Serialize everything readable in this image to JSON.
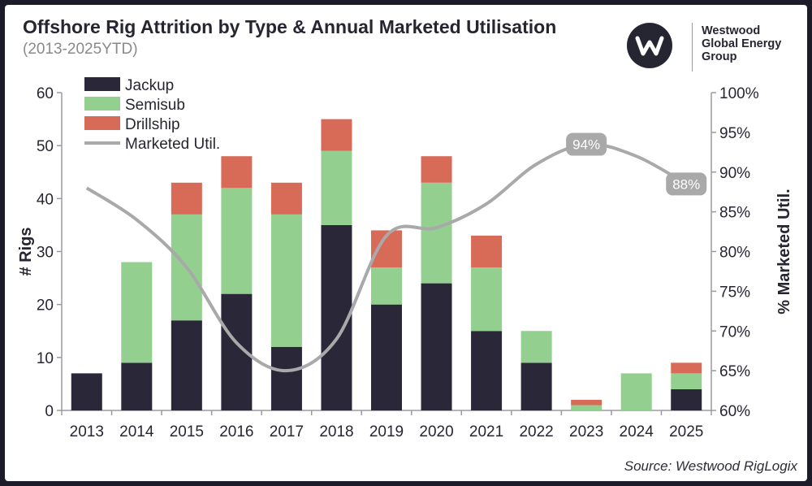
{
  "header": {
    "title": "Offshore Rig Attrition by Type & Annual Marketed Utilisation",
    "subtitle": "(2013-2025YTD)"
  },
  "logo": {
    "icon": "westwood-w-logo",
    "name_lines": [
      "Westwood",
      "Global Energy",
      "Group"
    ]
  },
  "source": "Source: Westwood RigLogix",
  "colors": {
    "jackup": "#2a2838",
    "semisub": "#93cf8f",
    "drillship": "#d86a58",
    "util_line": "#a9a9a9",
    "text": "#262633"
  },
  "chart_data": {
    "type": "bar",
    "stacked": true,
    "categories": [
      "2013",
      "2014",
      "2015",
      "2016",
      "2017",
      "2018",
      "2019",
      "2020",
      "2021",
      "2022",
      "2023",
      "2024",
      "2025"
    ],
    "series": [
      {
        "name": "Jackup",
        "type": "bar",
        "values": [
          7,
          9,
          17,
          22,
          12,
          35,
          20,
          24,
          15,
          9,
          0,
          0,
          4
        ]
      },
      {
        "name": "Semisub",
        "type": "bar",
        "values": [
          0,
          19,
          20,
          20,
          25,
          14,
          7,
          19,
          12,
          6,
          1,
          7,
          3
        ]
      },
      {
        "name": "Drillship",
        "type": "bar",
        "values": [
          0,
          0,
          6,
          6,
          6,
          6,
          7,
          5,
          6,
          0,
          1,
          0,
          2
        ]
      },
      {
        "name": "Marketed Util.",
        "type": "line",
        "axis": "right",
        "values": [
          88,
          84,
          78,
          68.5,
          65,
          69,
          82,
          83,
          86,
          91,
          93.5,
          92,
          88.5
        ]
      }
    ],
    "ylabel": "# Rigs",
    "ylim": [
      0,
      60
    ],
    "yticks": [
      "0",
      "10",
      "20",
      "30",
      "40",
      "50",
      "60"
    ],
    "y2label": "% Marketed Util.",
    "y2lim": [
      60,
      100
    ],
    "y2ticks": [
      "60%",
      "65%",
      "70%",
      "75%",
      "80%",
      "85%",
      "90%",
      "95%",
      "100%"
    ],
    "annotations": [
      {
        "category": "2023",
        "label": "94%"
      },
      {
        "category": "2025",
        "label": "88%"
      }
    ],
    "legend": {
      "position": "top-left",
      "items": [
        "Jackup",
        "Semisub",
        "Drillship",
        "Marketed Util."
      ]
    },
    "grid": false
  }
}
